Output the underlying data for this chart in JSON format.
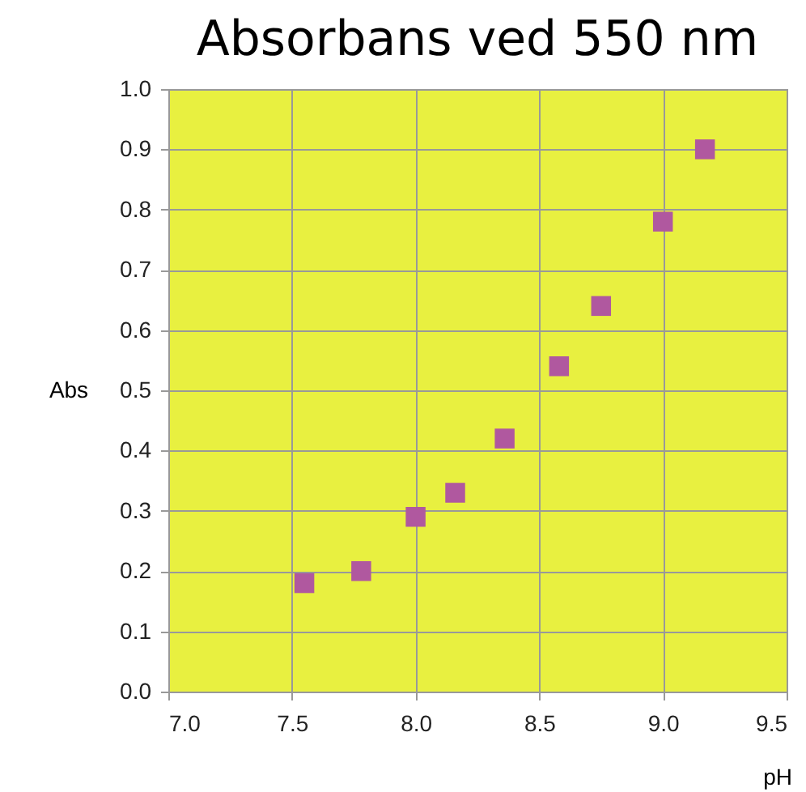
{
  "chart_data": {
    "type": "scatter",
    "title": "Absorbans ved 550 nm",
    "xlabel": "pH",
    "ylabel": "Abs",
    "x": [
      7.55,
      7.78,
      8.0,
      8.16,
      8.36,
      8.58,
      8.75,
      9.0,
      9.17
    ],
    "series": [
      {
        "color": "#b0589f",
        "values": [
          0.18,
          0.2,
          0.29,
          0.33,
          0.42,
          0.54,
          0.64,
          0.78,
          0.9
        ]
      }
    ],
    "xlim": [
      7.0,
      9.5
    ],
    "xticks": [
      {
        "value": 7.0,
        "label": "7.0"
      },
      {
        "value": 7.5,
        "label": "7.5"
      },
      {
        "value": 8.0,
        "label": "8.0"
      },
      {
        "value": 8.5,
        "label": "8.5"
      },
      {
        "value": 9.0,
        "label": "9.0"
      },
      {
        "value": 9.5,
        "label": "9.5"
      }
    ],
    "ylim": [
      0.0,
      1.0
    ],
    "yticks": [
      {
        "value": 0.0,
        "label": "0.0"
      },
      {
        "value": 0.1,
        "label": "0.1"
      },
      {
        "value": 0.2,
        "label": "0.2"
      },
      {
        "value": 0.3,
        "label": "0.3"
      },
      {
        "value": 0.4,
        "label": "0.4"
      },
      {
        "value": 0.5,
        "label": "0.5"
      },
      {
        "value": 0.6,
        "label": "0.6"
      },
      {
        "value": 0.7,
        "label": "0.7"
      },
      {
        "value": 0.8,
        "label": "0.8"
      },
      {
        "value": 0.9,
        "label": "0.9"
      },
      {
        "value": 1.0,
        "label": "1.0"
      }
    ],
    "grid": true,
    "marker": "square"
  }
}
